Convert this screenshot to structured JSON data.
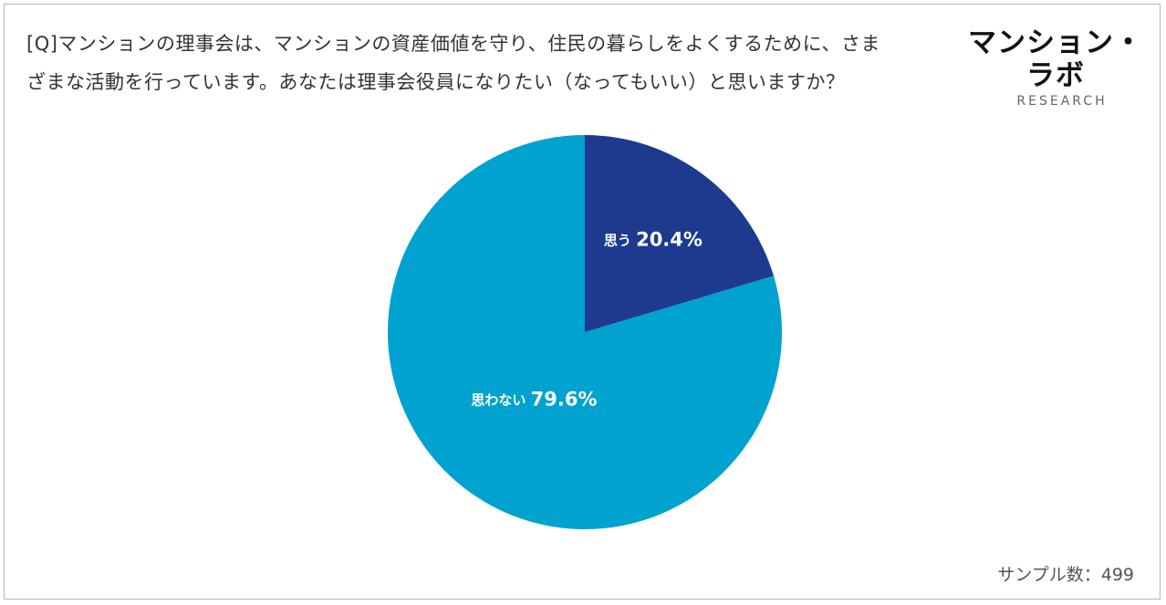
{
  "question": {
    "line1": "[Q]マンションの理事会は、マンションの資産価値を守り、住民の暮らしをよくするために、さま",
    "line2": "ざまな活動を行っています。あなたは理事会役員になりたい（なってもいい）と思いますか？"
  },
  "logo": {
    "main": "マンション・ラボ",
    "sub": "RESEARCH"
  },
  "footer": {
    "sample_size": "サンプル数：499"
  },
  "chart_data": {
    "type": "pie",
    "title": "",
    "start_angle_deg": 0,
    "direction": "clockwise",
    "slices": [
      {
        "name": "思う",
        "value": 20.4,
        "label": "思う",
        "value_label": "20.4%",
        "color": "#1e3a8f"
      },
      {
        "name": "思わない",
        "value": 79.6,
        "label": "思わない",
        "value_label": "79.6%",
        "color": "#00a2d0"
      }
    ],
    "sample_size": 499
  }
}
